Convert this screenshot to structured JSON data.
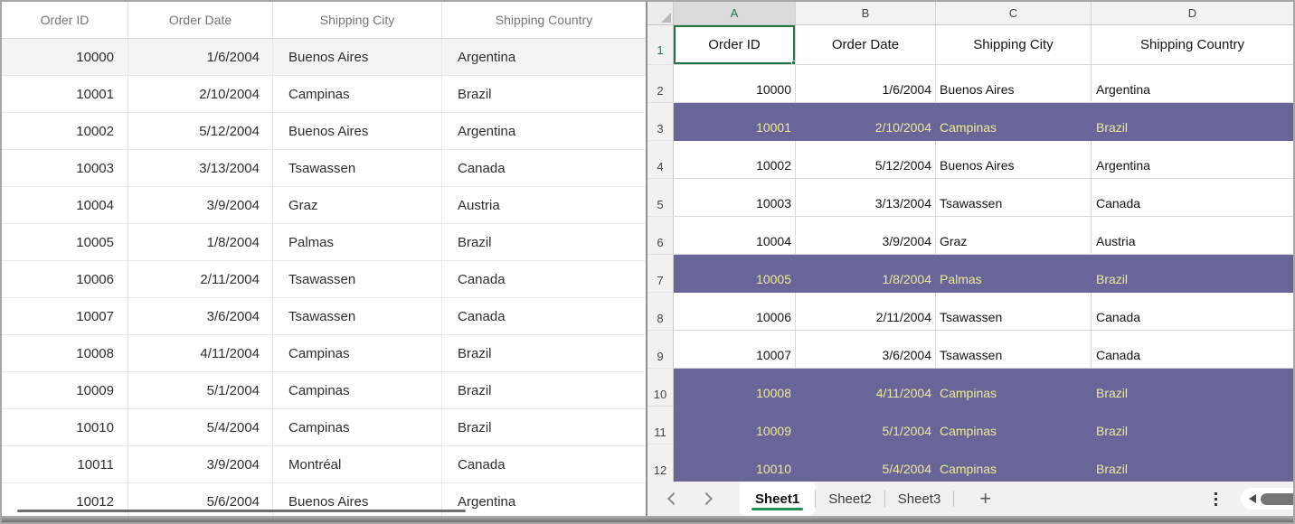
{
  "left_grid": {
    "columns": [
      "Order ID",
      "Order Date",
      "Shipping City",
      "Shipping Country"
    ],
    "rows": [
      {
        "order_id": "10000",
        "order_date": "1/6/2004",
        "city": "Buenos Aires",
        "country": "Argentina"
      },
      {
        "order_id": "10001",
        "order_date": "2/10/2004",
        "city": "Campinas",
        "country": "Brazil"
      },
      {
        "order_id": "10002",
        "order_date": "5/12/2004",
        "city": "Buenos Aires",
        "country": "Argentina"
      },
      {
        "order_id": "10003",
        "order_date": "3/13/2004",
        "city": "Tsawassen",
        "country": "Canada"
      },
      {
        "order_id": "10004",
        "order_date": "3/9/2004",
        "city": "Graz",
        "country": "Austria"
      },
      {
        "order_id": "10005",
        "order_date": "1/8/2004",
        "city": "Palmas",
        "country": "Brazil"
      },
      {
        "order_id": "10006",
        "order_date": "2/11/2004",
        "city": "Tsawassen",
        "country": "Canada"
      },
      {
        "order_id": "10007",
        "order_date": "3/6/2004",
        "city": "Tsawassen",
        "country": "Canada"
      },
      {
        "order_id": "10008",
        "order_date": "4/11/2004",
        "city": "Campinas",
        "country": "Brazil"
      },
      {
        "order_id": "10009",
        "order_date": "5/1/2004",
        "city": "Campinas",
        "country": "Brazil"
      },
      {
        "order_id": "10010",
        "order_date": "5/4/2004",
        "city": "Campinas",
        "country": "Brazil"
      },
      {
        "order_id": "10011",
        "order_date": "3/9/2004",
        "city": "Montréal",
        "country": "Canada"
      },
      {
        "order_id": "10012",
        "order_date": "5/6/2004",
        "city": "Buenos Aires",
        "country": "Argentina"
      }
    ]
  },
  "excel": {
    "column_letters": [
      "A",
      "B",
      "C",
      "D"
    ],
    "active_cell": "A1",
    "header_row": {
      "number": "1",
      "cells": [
        "Order ID",
        "Order Date",
        "Shipping City",
        "Shipping Country"
      ]
    },
    "data_rows": [
      {
        "n": "2",
        "order_id": "10000",
        "order_date": "1/6/2004",
        "city": "Buenos Aires",
        "country": "Argentina",
        "highlighted": false
      },
      {
        "n": "3",
        "order_id": "10001",
        "order_date": "2/10/2004",
        "city": "Campinas",
        "country": "Brazil",
        "highlighted": true
      },
      {
        "n": "4",
        "order_id": "10002",
        "order_date": "5/12/2004",
        "city": "Buenos Aires",
        "country": "Argentina",
        "highlighted": false
      },
      {
        "n": "5",
        "order_id": "10003",
        "order_date": "3/13/2004",
        "city": "Tsawassen",
        "country": "Canada",
        "highlighted": false
      },
      {
        "n": "6",
        "order_id": "10004",
        "order_date": "3/9/2004",
        "city": "Graz",
        "country": "Austria",
        "highlighted": false
      },
      {
        "n": "7",
        "order_id": "10005",
        "order_date": "1/8/2004",
        "city": "Palmas",
        "country": "Brazil",
        "highlighted": true
      },
      {
        "n": "8",
        "order_id": "10006",
        "order_date": "2/11/2004",
        "city": "Tsawassen",
        "country": "Canada",
        "highlighted": false
      },
      {
        "n": "9",
        "order_id": "10007",
        "order_date": "3/6/2004",
        "city": "Tsawassen",
        "country": "Canada",
        "highlighted": false
      },
      {
        "n": "10",
        "order_id": "10008",
        "order_date": "4/11/2004",
        "city": "Campinas",
        "country": "Brazil",
        "highlighted": true
      },
      {
        "n": "11",
        "order_id": "10009",
        "order_date": "5/1/2004",
        "city": "Campinas",
        "country": "Brazil",
        "highlighted": true
      },
      {
        "n": "12",
        "order_id": "10010",
        "order_date": "5/4/2004",
        "city": "Campinas",
        "country": "Brazil",
        "highlighted": true
      }
    ],
    "sheet_bar": {
      "active_tab": "Sheet1",
      "tabs": [
        "Sheet2",
        "Sheet3"
      ],
      "add_label": "+"
    },
    "colors": {
      "highlight_bg": "#686699",
      "highlight_text": "#EDE999",
      "selection_green": "#217346",
      "tab_underline": "#1F9254"
    }
  }
}
